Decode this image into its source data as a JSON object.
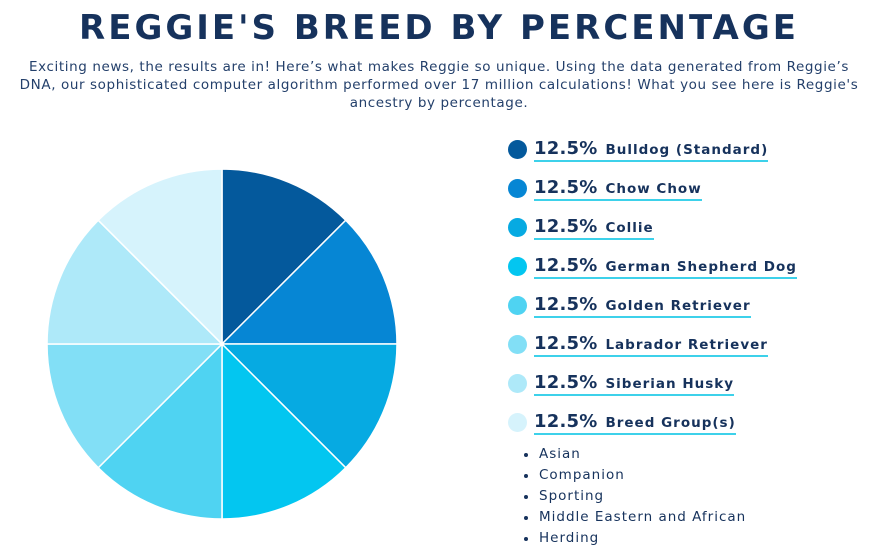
{
  "page": {
    "title": "REGGIE'S BREED BY PERCENTAGE",
    "intro": "Exciting news, the results are in! Here’s what makes Reggie so unique. Using the data generated from Reggie’s DNA, our sophisticated computer algorithm performed over 17 million calculations! What you see here is Reggie's ancestry by percentage."
  },
  "chart_data": {
    "type": "pie",
    "categories": [
      "Bulldog (Standard)",
      "Chow Chow",
      "Collie",
      "German Shepherd Dog",
      "Golden Retriever",
      "Labrador Retriever",
      "Siberian Husky",
      "Breed Group(s)"
    ],
    "values": [
      12.5,
      12.5,
      12.5,
      12.5,
      12.5,
      12.5,
      12.5,
      12.5
    ],
    "labels": [
      "12.5%",
      "12.5%",
      "12.5%",
      "12.5%",
      "12.5%",
      "12.5%",
      "12.5%",
      "12.5%"
    ],
    "colors": [
      "#04599c",
      "#0686d4",
      "#06aae2",
      "#03c6f0",
      "#4fd3f2",
      "#82dff6",
      "#aee9f9",
      "#d6f3fc"
    ],
    "start": "top, clockwise"
  },
  "breed_groups": [
    "Asian",
    "Companion",
    "Sporting",
    "Middle Eastern and African",
    "Herding"
  ],
  "colors": {
    "heading": "#16325c",
    "underline": "#3dd1ea"
  }
}
